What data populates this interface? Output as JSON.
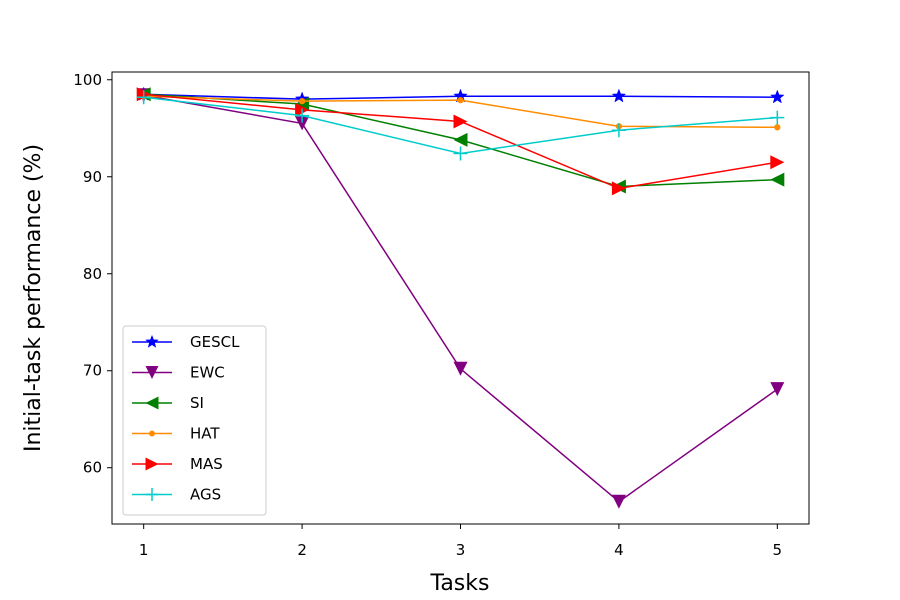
{
  "chart_data": {
    "type": "line",
    "title": "",
    "xlabel": "Tasks",
    "ylabel": "Initial-task performance (%)",
    "x": [
      1,
      2,
      3,
      4,
      5
    ],
    "xlim": [
      0.8,
      5.2
    ],
    "ylim": [
      54.2,
      100.8
    ],
    "xticks": [
      1,
      2,
      3,
      4,
      5
    ],
    "yticks": [
      60,
      70,
      80,
      90,
      100
    ],
    "grid": false,
    "legend_position": "lower-left",
    "series": [
      {
        "name": "GESCL",
        "color": "#0000ff",
        "marker": "star",
        "values": [
          98.5,
          98.0,
          98.3,
          98.3,
          98.2
        ]
      },
      {
        "name": "EWC",
        "color": "#800080",
        "marker": "triangle-down",
        "values": [
          98.4,
          95.5,
          70.2,
          56.5,
          68.1
        ]
      },
      {
        "name": "SI",
        "color": "#008000",
        "marker": "triangle-left",
        "values": [
          98.5,
          97.5,
          93.8,
          89.0,
          89.7
        ]
      },
      {
        "name": "HAT",
        "color": "#ff8c00",
        "marker": "circle",
        "values": [
          98.3,
          97.8,
          97.9,
          95.2,
          95.1
        ]
      },
      {
        "name": "MAS",
        "color": "#ff0000",
        "marker": "triangle-right",
        "values": [
          98.5,
          96.9,
          95.7,
          88.8,
          91.5
        ]
      },
      {
        "name": "AGS",
        "color": "#00cccc",
        "marker": "plus",
        "values": [
          98.2,
          96.3,
          92.4,
          94.8,
          96.1
        ]
      }
    ]
  }
}
